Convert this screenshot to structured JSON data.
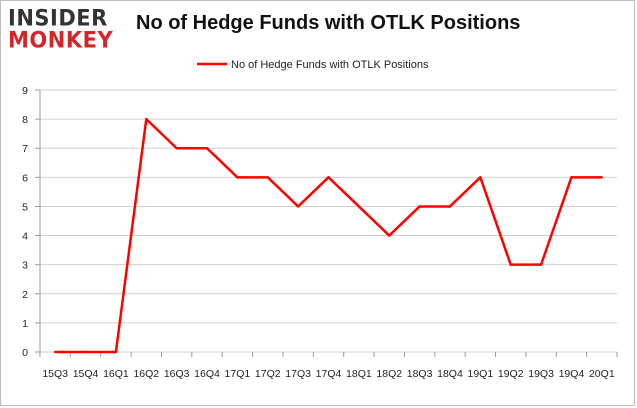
{
  "logo": {
    "line1": "INSIDER",
    "line2": "MONKEY"
  },
  "chart_data": {
    "type": "line",
    "title": "No of Hedge Funds with OTLK Positions",
    "categories": [
      "15Q3",
      "15Q4",
      "16Q1",
      "16Q2",
      "16Q3",
      "16Q4",
      "17Q1",
      "17Q2",
      "17Q3",
      "17Q4",
      "18Q1",
      "18Q2",
      "18Q3",
      "18Q4",
      "19Q1",
      "19Q2",
      "19Q3",
      "19Q4",
      "20Q1"
    ],
    "series": [
      {
        "name": "No of Hedge Funds with OTLK Positions",
        "color": "#ff0000",
        "values": [
          0,
          0,
          0,
          8,
          7,
          7,
          6,
          6,
          5,
          6,
          5,
          4,
          5,
          5,
          6,
          3,
          3,
          6,
          6
        ]
      }
    ],
    "ylim": [
      0,
      9
    ],
    "yticks": [
      0,
      1,
      2,
      3,
      4,
      5,
      6,
      7,
      8,
      9
    ],
    "grid": true,
    "legend": "top"
  }
}
